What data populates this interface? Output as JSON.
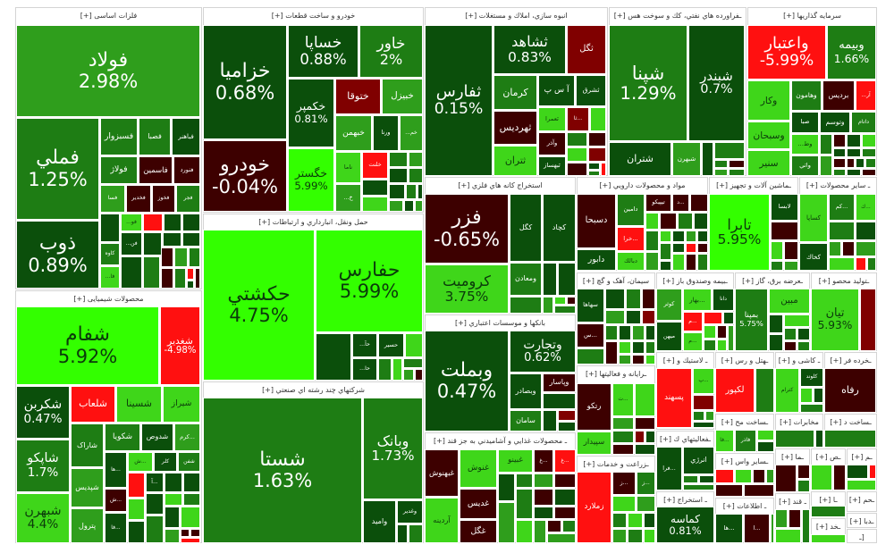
{
  "palette": {
    "dg": "#0b4f0b",
    "mg": "#1e7d14",
    "g": "#2f9e1c",
    "lg": "#3fd61a",
    "b": "#33ff00",
    "dr": "#3d0000",
    "r": "#800000",
    "rr": "#ff1010"
  },
  "sectors": [
    {
      "title": "فلزات اساسی [+]",
      "tiles": [
        {
          "symbol": "فولاد",
          "change": "2.98%",
          "tone": "g"
        },
        {
          "symbol": "فملي",
          "change": "1.25%",
          "tone": "mg"
        },
        {
          "symbol": "ذوب",
          "change": "0.89%",
          "tone": "dg"
        },
        {
          "symbol": "فسبزوار",
          "tone": "mg"
        },
        {
          "symbol": "فصبا",
          "tone": "mg"
        },
        {
          "symbol": "فباهنر",
          "tone": "dg"
        },
        {
          "symbol": "فولاژ",
          "tone": "mg"
        },
        {
          "symbol": "فاسمین",
          "tone": "dr"
        },
        {
          "symbol": "فنورد",
          "tone": "dr"
        },
        {
          "symbol": "فسا",
          "tone": "g"
        },
        {
          "symbol": "فخدیر",
          "tone": "dr"
        },
        {
          "symbol": "فخوز",
          "tone": "dr"
        },
        {
          "symbol": "فجر",
          "tone": "mg"
        },
        {
          "symbol": "فو...",
          "tone": "lg"
        },
        {
          "symbol": "فن...",
          "tone": "dg"
        },
        {
          "symbol": "کاوه",
          "tone": "mg"
        },
        {
          "symbol": "فا...",
          "tone": "lg"
        }
      ]
    },
    {
      "title": "خودرو و ساخت قطعات [+]",
      "tiles": [
        {
          "symbol": "خزامیا",
          "change": "0.68%",
          "tone": "dg"
        },
        {
          "symbol": "خودرو",
          "change": "-0.04%",
          "tone": "dr"
        },
        {
          "symbol": "خساپا",
          "change": "0.88%",
          "tone": "dg"
        },
        {
          "symbol": "خاور",
          "change": "2%",
          "tone": "mg"
        },
        {
          "symbol": "خکمپر",
          "change": "0.81%",
          "tone": "dg"
        },
        {
          "symbol": "خگستر",
          "change": "5.99%",
          "tone": "b"
        },
        {
          "symbol": "ختوقا",
          "tone": "r"
        },
        {
          "symbol": "خبیزل",
          "tone": "g"
        },
        {
          "symbol": "خبهمن",
          "tone": "g"
        },
        {
          "symbol": "ورنا",
          "tone": "dg"
        },
        {
          "symbol": "خم...",
          "tone": "g"
        },
        {
          "symbol": "ناما",
          "tone": "lg"
        },
        {
          "symbol": "خلنت",
          "tone": "rr"
        },
        {
          "symbol": "خ...",
          "tone": "g"
        }
      ]
    },
    {
      "title": "حمل ونقل، انبارداري و ارتباطات [+]",
      "tiles": [
        {
          "symbol": "حکشتي",
          "change": "4.75%",
          "tone": "b"
        },
        {
          "symbol": "حفارس",
          "change": "5.99%",
          "tone": "b"
        },
        {
          "symbol": "حآ...",
          "tone": "dg"
        },
        {
          "symbol": "حا...",
          "tone": "dg"
        },
        {
          "symbol": "حسیر",
          "tone": "dg"
        }
      ]
    },
    {
      "title": "شرکتهاي چند رشته اي صنعتي [+]",
      "tiles": [
        {
          "symbol": "شستا",
          "change": "1.63%",
          "tone": "mg"
        },
        {
          "symbol": "وبانک",
          "change": "1.73%",
          "tone": "mg"
        },
        {
          "symbol": "واميد",
          "tone": "dg"
        },
        {
          "symbol": "وغدیر",
          "tone": "dg"
        }
      ]
    },
    {
      "title": "محصولات شیمیایی [+]",
      "tiles": [
        {
          "symbol": "شفام",
          "change": "5.92%",
          "tone": "b"
        },
        {
          "symbol": "شغدیر",
          "change": "-4.98%",
          "tone": "rr"
        },
        {
          "symbol": "شکربن",
          "change": "0.47%",
          "tone": "dg"
        },
        {
          "symbol": "شلعاب",
          "tone": "rr"
        },
        {
          "symbol": "شسینا",
          "tone": "lg"
        },
        {
          "symbol": "شیراز",
          "tone": "lg"
        },
        {
          "symbol": "شاراک",
          "tone": "mg"
        },
        {
          "symbol": "شکویا",
          "tone": "mg"
        },
        {
          "symbol": "شدوص",
          "tone": "dg"
        },
        {
          "symbol": "...کرم",
          "tone": "g"
        },
        {
          "symbol": "شاپکو",
          "change": "1.7%",
          "tone": "mg"
        },
        {
          "symbol": "شپدیس",
          "tone": "g"
        },
        {
          "symbol": "پترول",
          "tone": "g"
        },
        {
          "symbol": "شبهرن",
          "change": "4.4%",
          "tone": "lg"
        },
        {
          "symbol": "...ها",
          "tone": "dg"
        },
        {
          "symbol": "...ش",
          "tone": "lg"
        },
        {
          "symbol": "كلر",
          "tone": "dg"
        },
        {
          "symbol": "شفن",
          "tone": "mg"
        },
        {
          "symbol": "...ش",
          "tone": "dr"
        },
        {
          "symbol": "...فا",
          "tone": "dg"
        },
        {
          "symbol": "...آ",
          "tone": "dg"
        }
      ]
    },
    {
      "title": "انبوه سازي، املاك و مستغلات [+]",
      "tiles": [
        {
          "symbol": "ثفارس",
          "change": "0.15%",
          "tone": "dg"
        },
        {
          "symbol": "ثشاهد",
          "change": "0.83%",
          "tone": "dg"
        },
        {
          "symbol": "ثگل",
          "tone": "r"
        },
        {
          "symbol": "کرمان",
          "tone": "mg"
        },
        {
          "symbol": "آ س پ",
          "tone": "dg"
        },
        {
          "symbol": "ثشرق",
          "tone": "dg"
        },
        {
          "symbol": "ثهرديس",
          "tone": "dr"
        },
        {
          "symbol": "ثعمرا",
          "tone": "lg"
        },
        {
          "symbol": "...ثا",
          "tone": "r"
        },
        {
          "symbol": "ثتران",
          "tone": "lg"
        },
        {
          "symbol": "وآذر",
          "tone": "dr"
        },
        {
          "symbol": "ثبهساز",
          "tone": "dg"
        }
      ]
    },
    {
      "title": "ـفراورده هاي نفتي، كك و سوخت هس [+]",
      "tiles": [
        {
          "symbol": "شپنا",
          "change": "1.29%",
          "tone": "mg"
        },
        {
          "symbol": "شبندر",
          "change": "0.7%",
          "tone": "dg"
        },
        {
          "symbol": "شتران",
          "tone": "dg"
        },
        {
          "symbol": "شبهرن",
          "tone": "g"
        }
      ]
    },
    {
      "title": "سرمایه گذاریها [+]",
      "tiles": [
        {
          "symbol": "واعتبار",
          "change": "-5.99%",
          "tone": "rr"
        },
        {
          "symbol": "وبیمه",
          "change": "1.66%",
          "tone": "mg"
        },
        {
          "symbol": "وکار",
          "tone": "lg"
        },
        {
          "symbol": "وهامون",
          "tone": "mg"
        },
        {
          "symbol": "برديس",
          "tone": "dr"
        },
        {
          "symbol": "آر...",
          "tone": "rr"
        },
        {
          "symbol": "صبا",
          "tone": "dg"
        },
        {
          "symbol": "وتوسم",
          "tone": "dg"
        },
        {
          "symbol": "داتام",
          "tone": "mg"
        },
        {
          "symbol": "وسبحان",
          "tone": "lg"
        },
        {
          "symbol": "وط...",
          "tone": "lg"
        },
        {
          "symbol": "سنیر",
          "tone": "lg"
        },
        {
          "symbol": "واتي",
          "tone": "mg"
        }
      ]
    },
    {
      "title": "استخراج کانه هاي فلزي [+]",
      "tiles": [
        {
          "symbol": "فزر",
          "change": "-0.65%",
          "tone": "dr"
        },
        {
          "symbol": "کگل",
          "tone": "dg"
        },
        {
          "symbol": "کچاد",
          "tone": "dg"
        },
        {
          "symbol": "کرومیت",
          "change": "3.75%",
          "tone": "lg"
        },
        {
          "symbol": "ومعادن",
          "tone": "mg"
        }
      ]
    },
    {
      "title": "بانکها و موسسات اعتباري [+]",
      "tiles": [
        {
          "symbol": "وبملت",
          "change": "0.47%",
          "tone": "dg"
        },
        {
          "symbol": "وتجارت",
          "change": "0.62%",
          "tone": "dg"
        },
        {
          "symbol": "وبصادر",
          "tone": "dg"
        },
        {
          "symbol": "وپاسار",
          "tone": "dr"
        },
        {
          "symbol": "سامان",
          "tone": "mg"
        }
      ]
    },
    {
      "title": "ـ محصولات غذايي و آشاميدني به جز قند [+]",
      "tiles": [
        {
          "symbol": "غبهنوش",
          "tone": "dr"
        },
        {
          "symbol": "غنوش",
          "tone": "lg"
        },
        {
          "symbol": "غبینو",
          "tone": "lg"
        },
        {
          "symbol": "...غ",
          "tone": "dr"
        },
        {
          "symbol": "...غ",
          "tone": "rr"
        },
        {
          "symbol": "آردینه",
          "tone": "lg"
        },
        {
          "symbol": "غدیس",
          "tone": "dr"
        },
        {
          "symbol": "غگل",
          "tone": "dr"
        }
      ]
    },
    {
      "title": "مواد و محصولات دارويي [+]",
      "tiles": [
        {
          "symbol": "دسبحا",
          "tone": "dr"
        },
        {
          "symbol": "دامین",
          "tone": "mg"
        },
        {
          "symbol": "تيپيكو",
          "tone": "dr"
        },
        {
          "symbol": "...د",
          "tone": "dr"
        },
        {
          "symbol": "...خرا",
          "tone": "rr"
        },
        {
          "symbol": "دابور",
          "tone": "dg"
        },
        {
          "symbol": "دبالك",
          "tone": "lg"
        }
      ]
    },
    {
      "title": "ـماشين آلات و تجهيز [+]",
      "tiles": [
        {
          "symbol": "تابرا",
          "change": "5.95%",
          "tone": "b"
        },
        {
          "symbol": "لابسا",
          "tone": "dg"
        }
      ]
    },
    {
      "title": "ـ ساير محصولات [+]",
      "tiles": [
        {
          "symbol": "کساپا",
          "tone": "lg"
        },
        {
          "symbol": "کخاك",
          "tone": "dg"
        },
        {
          "symbol": "...کم",
          "tone": "mg"
        },
        {
          "symbol": "...ك",
          "tone": "lg"
        }
      ]
    },
    {
      "title": "سیمان، آهک و گچ [+]",
      "tiles": [
        {
          "symbol": "سهاها",
          "tone": "dg"
        },
        {
          "symbol": "...س",
          "tone": "dr"
        }
      ]
    },
    {
      "title": "ـبیمه وصندوق باز [+]",
      "tiles": [
        {
          "symbol": "کوثر",
          "tone": "g"
        },
        {
          "symbol": "...بهار",
          "tone": "lg"
        },
        {
          "symbol": "دانا",
          "tone": "dg"
        },
        {
          "symbol": "میهن",
          "tone": "dg"
        },
        {
          "symbol": "...م",
          "tone": "rr"
        },
        {
          "symbol": "...م",
          "tone": "lg"
        }
      ]
    },
    {
      "title": "ـعرضه برق، گاز [+]",
      "tiles": [
        {
          "symbol": "بمپنا",
          "change": "5.75%",
          "tone": "mg"
        },
        {
          "symbol": "مبین",
          "tone": "lg"
        }
      ]
    },
    {
      "title": "ـتوليد محصو [+]",
      "tiles": [
        {
          "symbol": "تیان",
          "change": "5.93%",
          "tone": "lg"
        }
      ]
    },
    {
      "title": "ـرایانه و فعالیتها [+]",
      "tiles": [
        {
          "symbol": "رتكو",
          "tone": "dr"
        },
        {
          "symbol": "...ت",
          "tone": "lg"
        },
        {
          "symbol": "سپیدار",
          "tone": "lg"
        }
      ]
    },
    {
      "title": "ـزراعت و خدمات [+]",
      "tiles": [
        {
          "symbol": "زملارد",
          "tone": "rr"
        },
        {
          "symbol": "...ز",
          "tone": "dr"
        },
        {
          "symbol": "...ز",
          "tone": "mg"
        }
      ]
    },
    {
      "title": "ـ لاستيك و [+]",
      "tiles": [
        {
          "symbol": "پسهند",
          "tone": "rr"
        },
        {
          "symbol": "...پ",
          "tone": "lg"
        }
      ]
    },
    {
      "title": "ـفعالیتهاي ك [+]",
      "tiles": [
        {
          "symbol": "...فرا",
          "tone": "dg"
        },
        {
          "symbol": "انرژي",
          "tone": "dg"
        }
      ]
    },
    {
      "title": "ـ استخراج [+]",
      "tiles": [
        {
          "symbol": "کماسه",
          "change": "0.81%",
          "tone": "dg"
        }
      ]
    },
    {
      "title": "ـهتل و رس [+]",
      "tiles": [
        {
          "symbol": "لکپور",
          "tone": "rr"
        }
      ]
    },
    {
      "title": "ـ کاشی و [+]",
      "tiles": [
        {
          "symbol": "کترام",
          "tone": "lg"
        },
        {
          "symbol": "کلوند",
          "tone": "dg"
        }
      ]
    },
    {
      "title": "ـخرده فر [+]",
      "tiles": [
        {
          "symbol": "رفاه",
          "tone": "dr"
        }
      ]
    },
    {
      "title": "ـساخت مح [+]",
      "tiles": [
        {
          "symbol": "...فا",
          "tone": "lg"
        },
        {
          "symbol": "فاذر",
          "tone": "mg"
        }
      ]
    },
    {
      "title": "مخابرات [+]",
      "tiles": []
    },
    {
      "title": "ـساخت د [+]",
      "tiles": []
    },
    {
      "title": "ـساير واس [+]",
      "tiles": []
    },
    {
      "title": "ـ اطلاعات [+]",
      "tiles": [
        {
          "symbol": "...ها",
          "tone": "dg"
        },
        {
          "symbol": "...ا",
          "tone": "dr"
        }
      ]
    },
    {
      "title": "ـما [+]",
      "tiles": []
    },
    {
      "title": "ـص [+]",
      "tiles": []
    },
    {
      "title": "ـم [+]",
      "tiles": []
    },
    {
      "title": "ـ قند [+]",
      "tiles": []
    },
    {
      "title": "ـا [+]",
      "tiles": []
    },
    {
      "title": "ـحم [+]",
      "tiles": []
    },
    {
      "title": "ـخد [+]",
      "tiles": []
    },
    {
      "title": "ـدبا [+]",
      "tiles": []
    },
    {
      "title": "[ـ",
      "tiles": []
    }
  ]
}
